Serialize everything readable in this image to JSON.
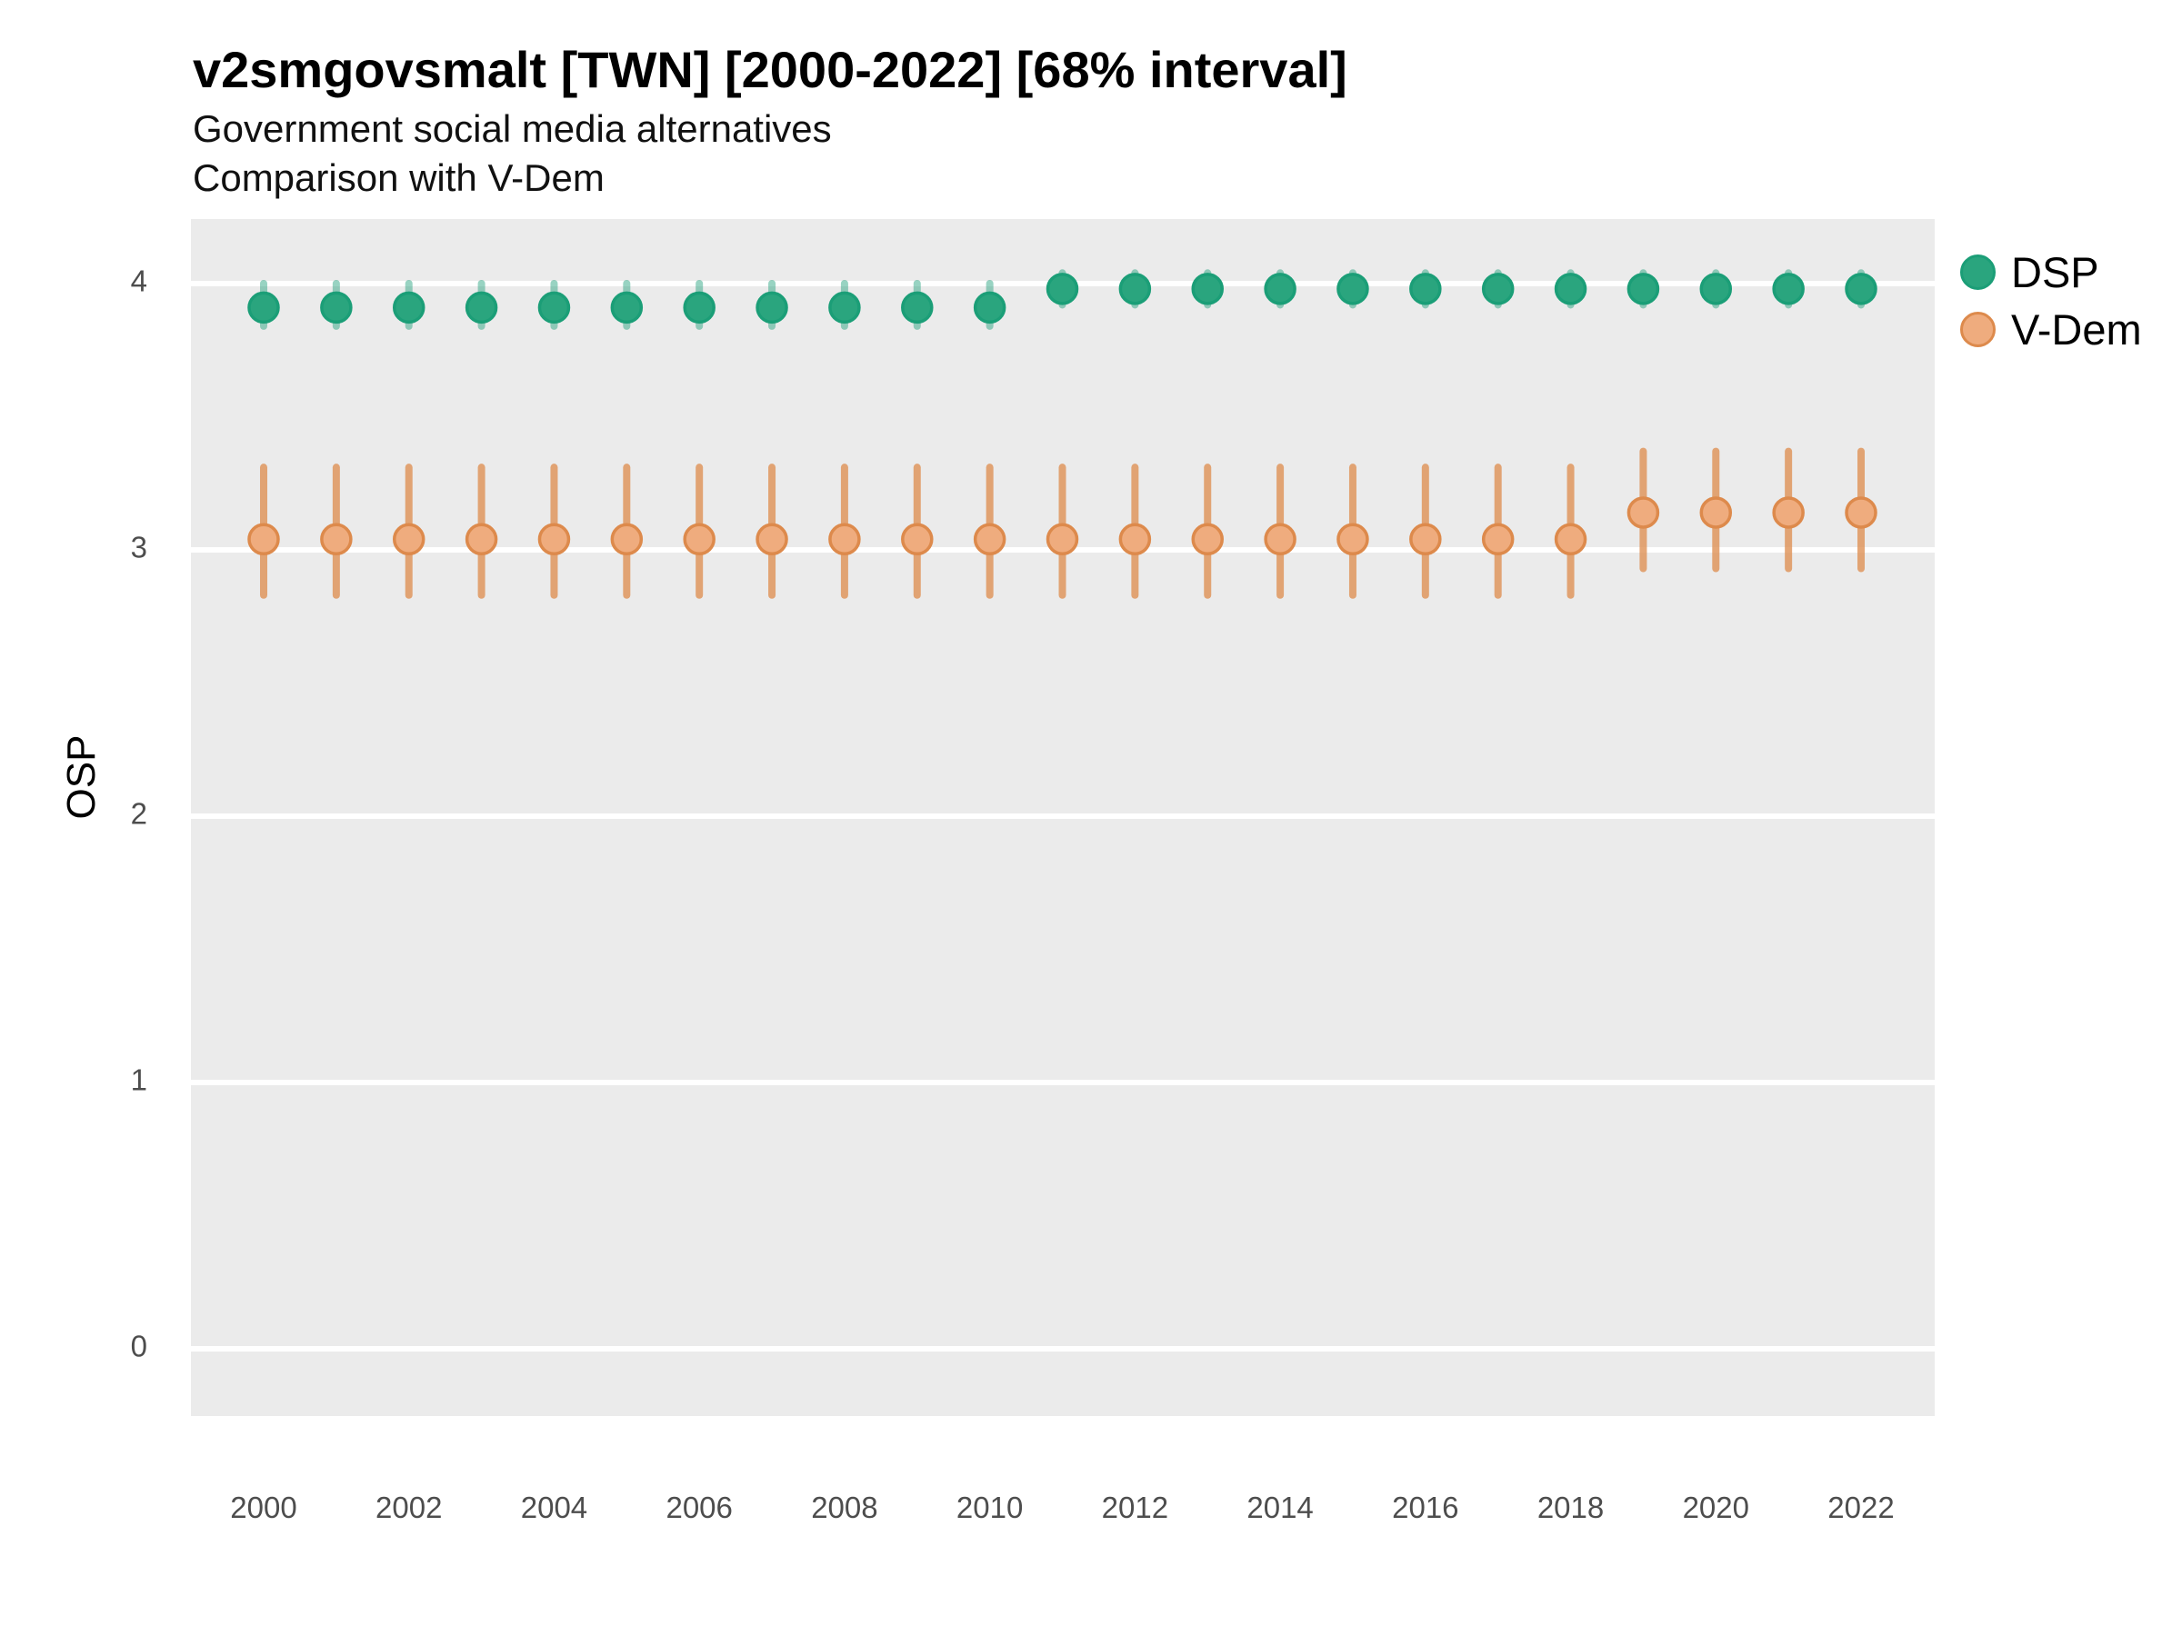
{
  "header": {
    "title": "v2smgovsmalt [TWN] [2000-2022] [68% interval]",
    "subtitle1": "Government social media alternatives",
    "subtitle2": "Comparison with V-Dem"
  },
  "axes": {
    "y_title": "OSP"
  },
  "legend": {
    "items": [
      {
        "label": "DSP",
        "swatch_fill": "#2AA57E",
        "swatch_stroke": "#1B9E77"
      },
      {
        "label": "V-Dem",
        "swatch_fill": "#EFAC7E",
        "swatch_stroke": "#DD8A4C"
      }
    ],
    "position": "right"
  },
  "colors": {
    "panel_background": "#EBEBEB",
    "gridline": "#FFFFFF",
    "axis_text": "#4D4D4D",
    "dsp_green": "#1B9E77",
    "vdem_orange": "#DD8A4C"
  },
  "chart_data": {
    "type": "scatter",
    "variant": "pointrange",
    "title": "v2smgovsmalt [TWN] [2000-2022] [68% interval]",
    "subtitle": [
      "Government social media alternatives",
      "Comparison with V-Dem"
    ],
    "interval": "68%",
    "xlabel": "",
    "ylabel": "OSP",
    "ylim": [
      -0.25,
      4.25
    ],
    "yticks": [
      0,
      1,
      2,
      3,
      4
    ],
    "xticks": [
      2000,
      2002,
      2004,
      2006,
      2008,
      2010,
      2012,
      2014,
      2016,
      2018,
      2020,
      2022
    ],
    "grid": "major-y",
    "legend_position": "right",
    "x": [
      2000,
      2001,
      2002,
      2003,
      2004,
      2005,
      2006,
      2007,
      2008,
      2009,
      2010,
      2011,
      2012,
      2013,
      2014,
      2015,
      2016,
      2017,
      2018,
      2019,
      2020,
      2021,
      2022
    ],
    "series": [
      {
        "name": "DSP",
        "point_fill": "#2AA57E",
        "point_stroke": "#1B9E77",
        "range_color": "rgba(27,158,119,0.45)",
        "y": [
          3.91,
          3.91,
          3.91,
          3.91,
          3.91,
          3.91,
          3.91,
          3.91,
          3.91,
          3.91,
          3.91,
          3.98,
          3.98,
          3.98,
          3.98,
          3.98,
          3.98,
          3.98,
          3.98,
          3.98,
          3.98,
          3.98,
          3.98
        ],
        "y_low": [
          3.84,
          3.84,
          3.84,
          3.84,
          3.84,
          3.84,
          3.84,
          3.84,
          3.84,
          3.84,
          3.84,
          3.92,
          3.92,
          3.92,
          3.92,
          3.92,
          3.92,
          3.92,
          3.92,
          3.92,
          3.92,
          3.92,
          3.92
        ],
        "y_high": [
          4.0,
          4.0,
          4.0,
          4.0,
          4.0,
          4.0,
          4.0,
          4.0,
          4.0,
          4.0,
          4.0,
          4.04,
          4.04,
          4.04,
          4.04,
          4.04,
          4.04,
          4.04,
          4.04,
          4.04,
          4.04,
          4.04,
          4.04
        ]
      },
      {
        "name": "V-Dem",
        "point_fill": "#EFAC7E",
        "point_stroke": "#DD8A4C",
        "range_color": "rgba(222,145,85,0.8)",
        "y": [
          3.04,
          3.04,
          3.04,
          3.04,
          3.04,
          3.04,
          3.04,
          3.04,
          3.04,
          3.04,
          3.04,
          3.04,
          3.04,
          3.04,
          3.04,
          3.04,
          3.04,
          3.04,
          3.04,
          3.14,
          3.14,
          3.14,
          3.14
        ],
        "y_low": [
          2.83,
          2.83,
          2.83,
          2.83,
          2.83,
          2.83,
          2.83,
          2.83,
          2.83,
          2.83,
          2.83,
          2.83,
          2.83,
          2.83,
          2.83,
          2.83,
          2.83,
          2.83,
          2.83,
          2.93,
          2.93,
          2.93,
          2.93
        ],
        "y_high": [
          3.31,
          3.31,
          3.31,
          3.31,
          3.31,
          3.31,
          3.31,
          3.31,
          3.31,
          3.31,
          3.31,
          3.31,
          3.31,
          3.31,
          3.31,
          3.31,
          3.31,
          3.31,
          3.31,
          3.37,
          3.37,
          3.37,
          3.37
        ]
      }
    ]
  }
}
